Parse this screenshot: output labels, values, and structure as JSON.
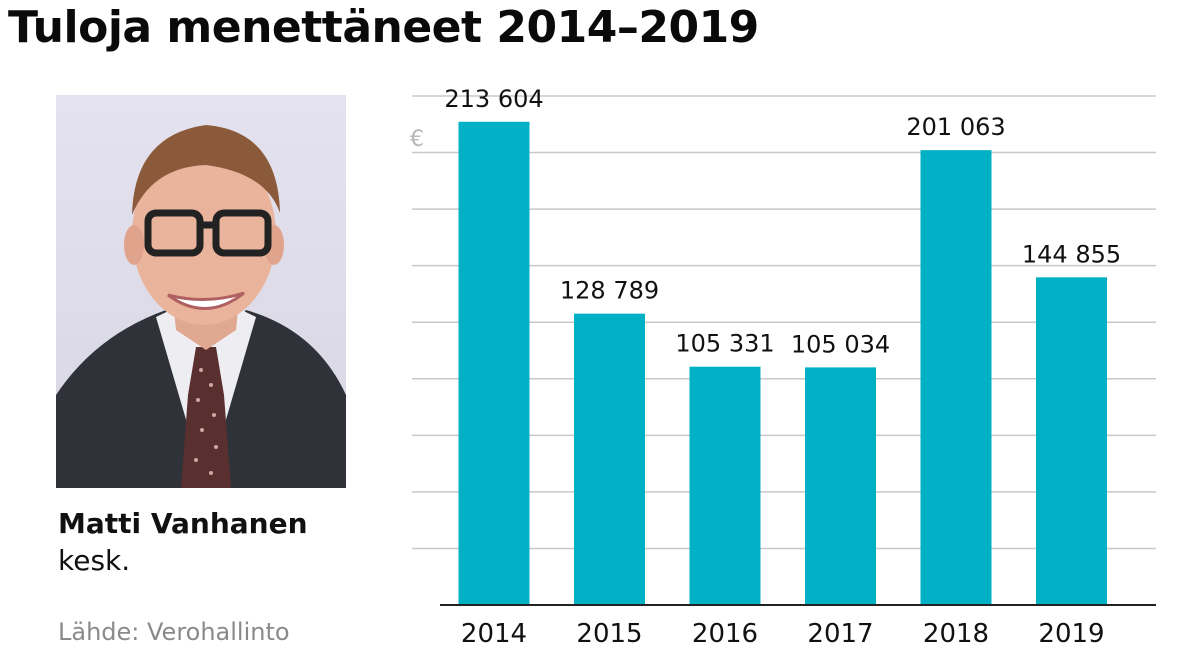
{
  "header": {
    "title": "Tuloja menettäneet 2014–2019"
  },
  "person": {
    "name": "Matti Vanhanen",
    "party": "kesk.",
    "photo_icon": "portrait-photo"
  },
  "source": "Lähde: Verohallinto",
  "colors": {
    "bar": "#00b0c4",
    "grid": "#c8c8c8",
    "axis": "#222222"
  },
  "chart_data": {
    "type": "bar",
    "title": "Tuloja menettäneet 2014–2019",
    "xlabel": "",
    "ylabel": "€",
    "categories": [
      "2014",
      "2015",
      "2016",
      "2017",
      "2018",
      "2019"
    ],
    "values": [
      213604,
      128789,
      105331,
      105034,
      201063,
      144855
    ],
    "value_labels": [
      "213 604",
      "128 789",
      "105 331",
      "105 034",
      "201 063",
      "144 855"
    ],
    "ylim": [
      0,
      225000
    ],
    "grid": true,
    "gridlines": [
      0,
      25000,
      50000,
      75000,
      100000,
      125000,
      150000,
      175000,
      200000,
      225000
    ]
  }
}
